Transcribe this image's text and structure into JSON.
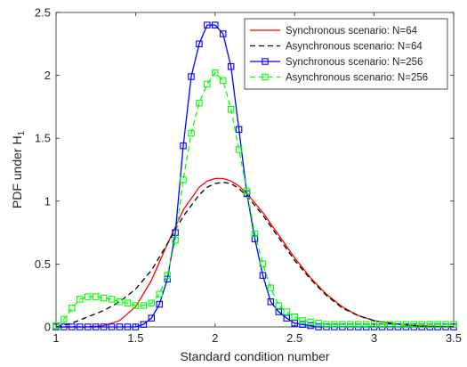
{
  "chart_data": {
    "type": "line",
    "xlabel": "Standard condition number",
    "ylabel": "PDF under H",
    "ylabel_subscript": "1",
    "xlim": [
      1,
      3.5
    ],
    "ylim": [
      0,
      2.5
    ],
    "xticks": [
      "1",
      "1.5",
      "2",
      "2.5",
      "3",
      "3.5"
    ],
    "yticks": [
      "0",
      "0.5",
      "1",
      "1.5",
      "2",
      "2.5"
    ],
    "grid": false,
    "legend_position": "top-right",
    "series": [
      {
        "name": "Synchronous scenario: N=64",
        "color": "#ff0000",
        "line_style": "solid",
        "marker": "none",
        "x": [
          1.0,
          1.1,
          1.2,
          1.3,
          1.4,
          1.5,
          1.6,
          1.7,
          1.8,
          1.9,
          1.95,
          2.0,
          2.05,
          2.1,
          2.15,
          2.2,
          2.3,
          2.4,
          2.5,
          2.6,
          2.7,
          2.8,
          2.9,
          3.0,
          3.1,
          3.2,
          3.3,
          3.4,
          3.5
        ],
        "y": [
          0.0,
          0.0,
          0.0,
          0.01,
          0.05,
          0.16,
          0.37,
          0.66,
          0.93,
          1.11,
          1.16,
          1.18,
          1.18,
          1.16,
          1.12,
          1.06,
          0.91,
          0.73,
          0.55,
          0.39,
          0.26,
          0.16,
          0.09,
          0.05,
          0.03,
          0.015,
          0.007,
          0.003,
          0.0
        ]
      },
      {
        "name": "Asynchronous scenario: N=64",
        "color": "#000000",
        "line_style": "dashed",
        "marker": "none",
        "x": [
          1.0,
          1.1,
          1.2,
          1.3,
          1.4,
          1.5,
          1.6,
          1.7,
          1.8,
          1.9,
          1.95,
          2.0,
          2.05,
          2.1,
          2.15,
          2.2,
          2.3,
          2.4,
          2.5,
          2.6,
          2.7,
          2.8,
          2.9,
          3.0,
          3.1,
          3.2,
          3.3,
          3.4,
          3.5
        ],
        "y": [
          0.0,
          0.03,
          0.08,
          0.13,
          0.2,
          0.3,
          0.45,
          0.66,
          0.88,
          1.05,
          1.11,
          1.14,
          1.15,
          1.14,
          1.1,
          1.04,
          0.89,
          0.71,
          0.53,
          0.38,
          0.25,
          0.15,
          0.09,
          0.05,
          0.03,
          0.015,
          0.007,
          0.003,
          0.0
        ]
      },
      {
        "name": "Synchronous scenario: N=256",
        "color": "#0000ff",
        "line_style": "solid",
        "marker": "square",
        "x": [
          1.0,
          1.05,
          1.1,
          1.15,
          1.2,
          1.25,
          1.3,
          1.35,
          1.4,
          1.45,
          1.5,
          1.55,
          1.6,
          1.65,
          1.7,
          1.75,
          1.8,
          1.85,
          1.9,
          1.95,
          2.0,
          2.05,
          2.1,
          2.15,
          2.2,
          2.25,
          2.3,
          2.35,
          2.4,
          2.45,
          2.5,
          2.55,
          2.6,
          2.65,
          2.7,
          2.75,
          2.8,
          2.85,
          2.9,
          2.95,
          3.0,
          3.05,
          3.1,
          3.15,
          3.2,
          3.25,
          3.3,
          3.35,
          3.4,
          3.45,
          3.5
        ],
        "y": [
          0,
          0,
          0,
          0,
          0,
          0,
          0,
          0,
          0,
          0,
          0,
          0.02,
          0.07,
          0.18,
          0.38,
          0.75,
          1.44,
          1.99,
          2.25,
          2.4,
          2.4,
          2.33,
          2.07,
          1.57,
          1.06,
          0.7,
          0.41,
          0.2,
          0.12,
          0.07,
          0.03,
          0.02,
          0.01,
          0,
          0,
          0,
          0,
          0,
          0,
          0,
          0,
          0,
          0,
          0,
          0,
          0,
          0,
          0,
          0,
          0,
          0
        ]
      },
      {
        "name": "Asynchronous scenario: N=256",
        "color": "#00ff00",
        "line_style": "dashed",
        "marker": "square",
        "x": [
          1.0,
          1.05,
          1.1,
          1.15,
          1.2,
          1.25,
          1.3,
          1.35,
          1.4,
          1.45,
          1.5,
          1.55,
          1.6,
          1.65,
          1.7,
          1.75,
          1.8,
          1.85,
          1.9,
          1.95,
          2.0,
          2.05,
          2.1,
          2.15,
          2.2,
          2.25,
          2.3,
          2.35,
          2.4,
          2.45,
          2.5,
          2.55,
          2.6,
          2.65,
          2.7,
          2.75,
          2.8,
          2.85,
          2.9,
          2.95,
          3.0,
          3.05,
          3.1,
          3.15,
          3.2,
          3.25,
          3.3,
          3.35,
          3.4,
          3.45,
          3.5
        ],
        "y": [
          0.01,
          0.06,
          0.15,
          0.22,
          0.24,
          0.24,
          0.23,
          0.22,
          0.2,
          0.19,
          0.17,
          0.17,
          0.19,
          0.26,
          0.41,
          0.69,
          1.17,
          1.54,
          1.78,
          1.93,
          2.02,
          1.96,
          1.73,
          1.41,
          1.08,
          0.74,
          0.5,
          0.31,
          0.17,
          0.12,
          0.08,
          0.05,
          0.04,
          0.03,
          0.02,
          0.02,
          0.02,
          0.02,
          0.02,
          0.02,
          0.02,
          0.02,
          0.02,
          0.02,
          0.02,
          0.02,
          0.02,
          0.02,
          0.02,
          0.02,
          0.02
        ]
      }
    ]
  }
}
